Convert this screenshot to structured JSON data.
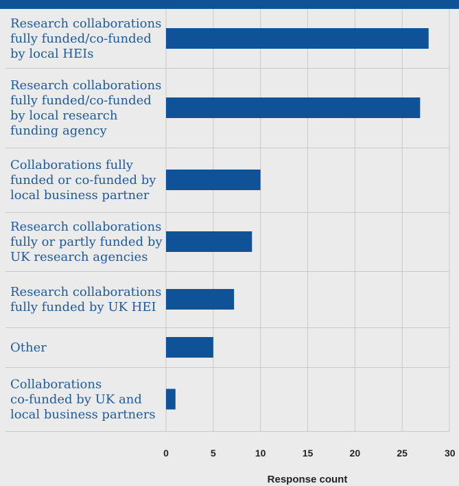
{
  "chart_data": {
    "type": "bar",
    "orientation": "horizontal",
    "categories": [
      [
        "Research collaborations",
        "fully funded/co-funded",
        "by local HEIs"
      ],
      [
        "Research collaborations",
        "fully funded/co-funded",
        "by local research",
        "funding agency"
      ],
      [
        "Collaborations fully",
        "funded or co-funded by",
        "local business partner"
      ],
      [
        "Research collaborations",
        "fully or partly funded by",
        "UK research agencies"
      ],
      [
        "Research collaborations",
        "fully funded by UK HEI"
      ],
      [
        "Other"
      ],
      [
        "Collaborations",
        "co-funded by UK and",
        "local business partners"
      ]
    ],
    "values": [
      27.8,
      26.9,
      10,
      9.1,
      7.2,
      5,
      1
    ],
    "xlabel": "Response count",
    "xlim": [
      0,
      30
    ],
    "xticks": [
      0,
      5,
      10,
      15,
      20,
      25,
      30
    ],
    "grid": true,
    "colors": {
      "bar": "#0f5297",
      "category_label": "#1c5a9d",
      "background": "#ebebeb",
      "grid": "#c8c8c8",
      "header_band": "#0f5297",
      "separator": "#c8c8c8"
    }
  }
}
